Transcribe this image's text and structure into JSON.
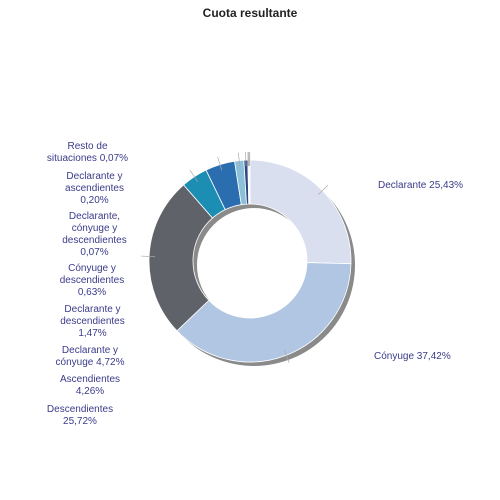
{
  "chart_data": {
    "type": "pie",
    "title": "Cuota resultante",
    "donut": true,
    "slices": [
      {
        "name": "Declarante",
        "value": 25.43,
        "label": "Declarante 25,43%",
        "color": "#dadff0"
      },
      {
        "name": "Cónyuge",
        "value": 37.42,
        "label": "Cónyuge 37,42%",
        "color": "#b0c6e3"
      },
      {
        "name": "Descendientes",
        "value": 25.72,
        "label": "Descendientes\n25,72%",
        "color": "#5f6268"
      },
      {
        "name": "Ascendientes",
        "value": 4.26,
        "label": "Ascendientes\n4,26%",
        "color": "#1c8db3"
      },
      {
        "name": "Declarante y cónyuge",
        "value": 4.72,
        "label": "Declarante y\ncónyuge 4,72%",
        "color": "#2a6eb0"
      },
      {
        "name": "Declarante y descendientes",
        "value": 1.47,
        "label": "Declarante y\ndescendientes\n1,47%",
        "color": "#8bc0d8"
      },
      {
        "name": "Cónyuge y descendientes",
        "value": 0.63,
        "label": "Cónyuge y\ndescendientes\n0,63%",
        "color": "#2d4a80"
      },
      {
        "name": "Declarante, cónyuge y descendientes",
        "value": 0.07,
        "label": "Declarante,\ncónyuge y\ndescendientes\n0,07%",
        "color": "#a8a8a8"
      },
      {
        "name": "Declarante y ascendientes",
        "value": 0.2,
        "label": "Declarante y\nascendientes\n0,20%",
        "color": "#c0c4cc"
      },
      {
        "name": "Resto de situaciones",
        "value": 0.07,
        "label": "Resto de\nsituaciones 0,07%",
        "color": "#9aa0a8"
      }
    ]
  }
}
